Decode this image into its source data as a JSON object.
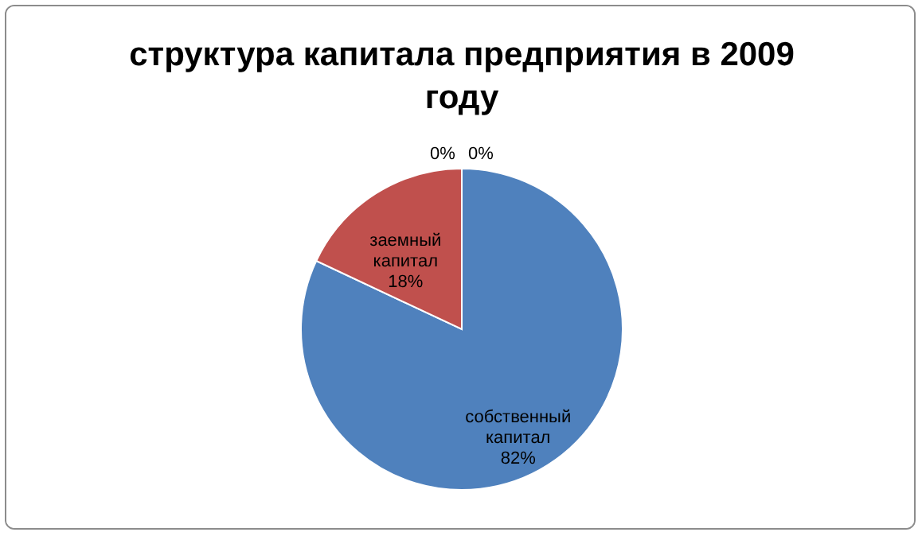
{
  "chart_data": {
    "type": "pie",
    "title": "структура капитала предприятия в 2009 году",
    "categories": [
      "собственный капитал",
      "заемный капитал",
      null,
      null
    ],
    "values": [
      82,
      18,
      0,
      0
    ],
    "colors": [
      "#4f81bd",
      "#c0504d",
      "#9bbb59",
      "#8064a2"
    ],
    "value_labels": [
      "82%",
      "18%",
      "0%",
      "0%"
    ],
    "legend": false
  }
}
